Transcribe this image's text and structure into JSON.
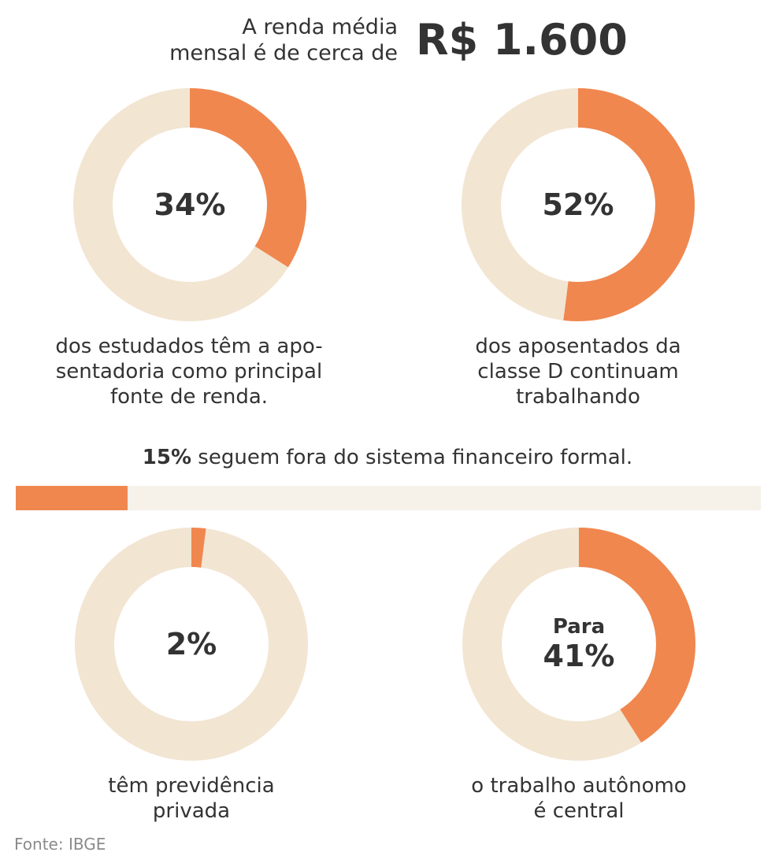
{
  "colors": {
    "accent": "#f0874f",
    "remainder": "#f2e5d2",
    "bar_track": "#f6f1e9",
    "text": "#333333",
    "source_text": "#8a8a8a"
  },
  "headline": {
    "label_line1": "A renda média",
    "label_line2": "mensal é de cerca de",
    "value": "R$ 1.600"
  },
  "chart_data": [
    {
      "type": "pie",
      "variant": "donut",
      "value": 34,
      "max": 100,
      "center_label": "34%",
      "caption": [
        "dos estudados têm a apo-",
        "sentadoria como principal",
        "fonte de renda."
      ]
    },
    {
      "type": "pie",
      "variant": "donut",
      "value": 52,
      "max": 100,
      "center_label": "52%",
      "caption": [
        "dos aposentados da",
        "classe D continuam",
        "trabalhando"
      ]
    },
    {
      "type": "bar",
      "orientation": "horizontal",
      "value": 15,
      "max": 100,
      "label_bold": "15%",
      "label_rest": " seguem fora do sistema financeiro formal."
    },
    {
      "type": "pie",
      "variant": "donut",
      "value": 2,
      "max": 100,
      "center_label": "2%",
      "caption": [
        "têm previdência",
        "privada"
      ]
    },
    {
      "type": "pie",
      "variant": "donut",
      "value": 41,
      "max": 100,
      "center_prefix": "Para",
      "center_label": "41%",
      "caption": [
        "o trabalho autônomo",
        "é central"
      ]
    }
  ],
  "source": "Fonte: IBGE"
}
